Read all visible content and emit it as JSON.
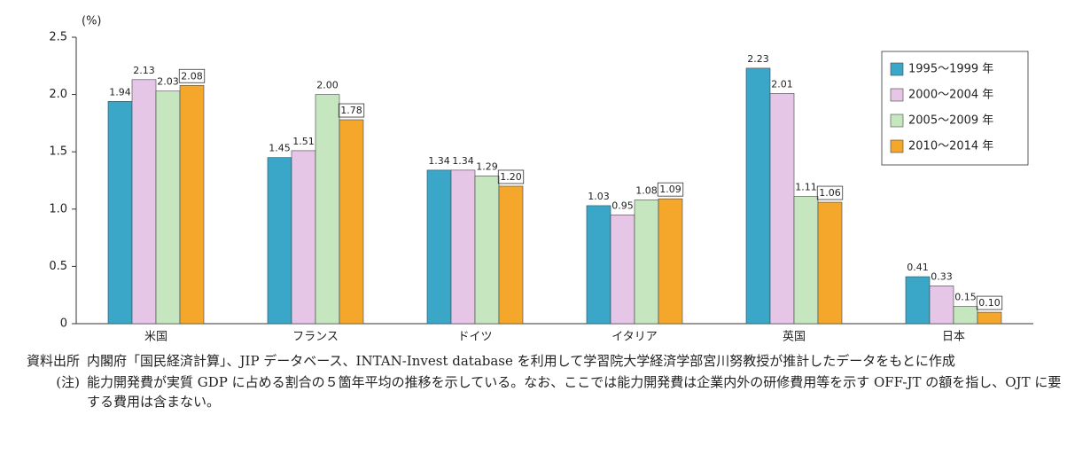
{
  "chart_data": {
    "type": "bar",
    "y_unit": "(%)",
    "categories": [
      "米国",
      "フランス",
      "ドイツ",
      "イタリア",
      "英国",
      "日本"
    ],
    "series": [
      {
        "name": "1995～1999 年",
        "color": "#3aa6c8",
        "values": [
          1.94,
          1.45,
          1.34,
          1.03,
          2.23,
          0.41
        ],
        "value_labels": [
          "1.94",
          "1.45",
          "1.34",
          "1.03",
          "2.23",
          "0.41"
        ]
      },
      {
        "name": "2000～2004 年",
        "color": "#e6c6e6",
        "values": [
          2.13,
          1.51,
          1.34,
          0.95,
          2.01,
          0.33
        ],
        "value_labels": [
          "2.13",
          "1.51",
          "1.34",
          "0.95",
          "2.01",
          "0.33"
        ]
      },
      {
        "name": "2005～2009 年",
        "color": "#c6e6c0",
        "values": [
          2.03,
          2.0,
          1.29,
          1.08,
          1.11,
          0.15
        ],
        "value_labels": [
          "2.03",
          "2.00",
          "1.29",
          "1.08",
          "1.11",
          "0.15"
        ]
      },
      {
        "name": "2010～2014 年",
        "color": "#f4a72a",
        "values": [
          2.08,
          1.78,
          1.2,
          1.09,
          1.06,
          0.1
        ],
        "value_labels": [
          "2.08",
          "1.78",
          "1.20",
          "1.09",
          "1.06",
          "0.10"
        ]
      }
    ],
    "ylim": [
      0,
      2.5
    ],
    "yticks": [
      0,
      0.5,
      {
        "value": 1,
        "label": "1.0"
      },
      1.5,
      {
        "value": 2,
        "label": "2.0"
      },
      2.5
    ],
    "grid": false,
    "legend": "upper right"
  },
  "notes": {
    "source_label": "資料出所",
    "source": "内閣府「国民経済計算」、JIP データベース、INTAN-Invest database を利用して学習院大学経済学部宮川努教授が推計したデータをもとに作成",
    "note_label": "(注)",
    "note": "能力開発費が実質 GDP に占める割合の５箇年平均の推移を示している。なお、ここでは能力開発費は企業内外の研修費用等を示す OFF-JT の額を指し、OJT に要する費用は含まない。"
  }
}
